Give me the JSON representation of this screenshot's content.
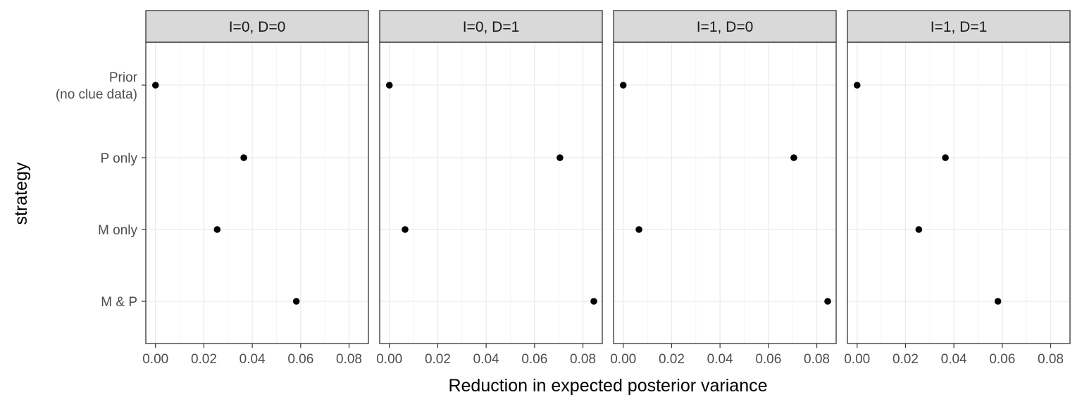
{
  "chart_data": {
    "type": "scatter",
    "xlabel": "Reduction in expected posterior variance",
    "ylabel": "strategy",
    "categories": [
      "Prior\n(no clue data)",
      "P only",
      "M only",
      "M & P"
    ],
    "xlim": [
      -0.004,
      0.088
    ],
    "xticks": [
      0.0,
      0.02,
      0.04,
      0.06,
      0.08
    ],
    "xtick_labels": [
      "0.00",
      "0.02",
      "0.04",
      "0.06",
      "0.08"
    ],
    "grid": true,
    "legend": "none",
    "panels": [
      {
        "title": "I=0, D=0",
        "values": [
          0.0,
          0.0365,
          0.0255,
          0.0582
        ]
      },
      {
        "title": "I=0, D=1",
        "values": [
          0.0,
          0.0705,
          0.0065,
          0.0845
        ]
      },
      {
        "title": "I=1, D=0",
        "values": [
          0.0,
          0.0705,
          0.0065,
          0.0845
        ]
      },
      {
        "title": "I=1, D=1",
        "values": [
          0.0,
          0.0365,
          0.0255,
          0.0582
        ]
      }
    ],
    "colors": {
      "point": "#000000",
      "strip_fill": "#d9d9d9",
      "panel_border": "#333333",
      "grid_major": "#ebebeb",
      "grid_minor": "#f5f5f5"
    }
  }
}
